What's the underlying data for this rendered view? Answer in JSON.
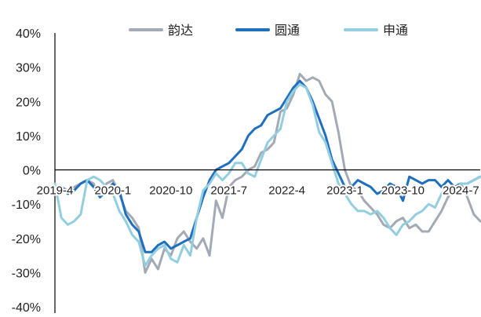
{
  "chart_data": {
    "type": "line",
    "title": "",
    "xlabel": "",
    "ylabel": "",
    "ylim": [
      -40,
      40
    ],
    "y_ticks": [
      "40%",
      "30%",
      "20%",
      "10%",
      "0%",
      "-10%",
      "-20%",
      "-30%",
      "-40%"
    ],
    "x_ticks": [
      "2019-4",
      "2020-1",
      "2020-10",
      "2021-7",
      "2022-4",
      "2023-1",
      "2023-10",
      "2024-7"
    ],
    "x_tick_index": [
      0,
      9,
      18,
      27,
      36,
      45,
      54,
      63
    ],
    "x_count": 67,
    "legend_position": "top",
    "grid": false,
    "series": [
      {
        "name": "韵达",
        "color": "#a3aab5",
        "values": [
          -5,
          -5,
          -6,
          -5,
          -4,
          -3,
          -4,
          -8,
          -4,
          -3,
          -7,
          -12,
          -14,
          -17,
          -30,
          -26,
          -29,
          -23,
          -25,
          -20,
          -18,
          -21,
          -23,
          -20,
          -25,
          -9,
          -14,
          -5,
          -3,
          -2,
          0,
          1,
          5,
          6,
          8,
          17,
          18,
          22,
          28,
          26,
          27,
          26,
          22,
          20,
          11,
          0,
          -5,
          -6,
          -9,
          -11,
          -13,
          -16,
          -17,
          -15,
          -14,
          -17,
          -16,
          -18,
          -18,
          -15,
          -12,
          -8,
          -5,
          -4,
          -8,
          -13,
          -15
        ]
      },
      {
        "name": "圆通",
        "color": "#1f6fbf",
        "values": [
          -6,
          -5,
          -7,
          -6,
          -4,
          -3,
          -5,
          -8,
          -6,
          -4,
          -6,
          -13,
          -16,
          -18,
          -24,
          -24,
          -22,
          -21,
          -23,
          -22,
          -21,
          -20,
          -14,
          -8,
          -3,
          0,
          1,
          2,
          4,
          6,
          10,
          12,
          13,
          16,
          17,
          18,
          21,
          24,
          26,
          24,
          20,
          15,
          10,
          3,
          -1,
          -5,
          -5,
          -3,
          -4,
          -5,
          -7,
          -6,
          -4,
          -5,
          -9,
          -2,
          -3,
          -4,
          -3,
          -3,
          -5,
          -3,
          -5,
          -4,
          -4,
          -3,
          -2
        ]
      },
      {
        "name": "申通",
        "color": "#93cde0",
        "values": [
          -4,
          -14,
          -16,
          -15,
          -13,
          -3,
          -2,
          -3,
          -5,
          -7,
          -12,
          -15,
          -19,
          -21,
          -28,
          -25,
          -23,
          -22,
          -26,
          -27,
          -22,
          -25,
          -14,
          -6,
          -4,
          -1,
          -3,
          -1,
          2,
          2,
          -1,
          -2,
          3,
          8,
          10,
          12,
          20,
          23,
          25,
          24,
          19,
          11,
          8,
          2,
          -4,
          -7,
          -10,
          -12,
          -12,
          -13,
          -12,
          -14,
          -17,
          -19,
          -16,
          -15,
          -13,
          -12,
          -10,
          -11,
          -7,
          -5,
          -6,
          -4,
          -4,
          -3,
          -2
        ]
      }
    ]
  }
}
